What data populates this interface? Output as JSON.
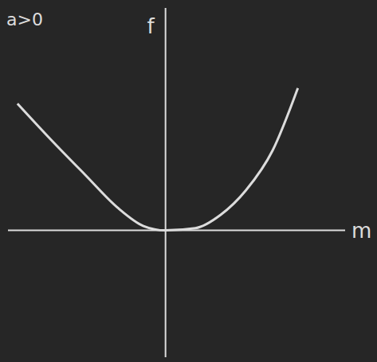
{
  "chart_data": {
    "type": "line",
    "title": "a>0",
    "x_label": "m",
    "y_label": "f",
    "x": [
      -0.94,
      -0.73,
      -0.51,
      -0.3,
      -0.14,
      0,
      0.19,
      0.35,
      0.51,
      0.68,
      0.84
    ],
    "values": [
      0.57,
      0.41,
      0.25,
      0.1,
      0.02,
      0,
      0.01,
      0.07,
      0.18,
      0.36,
      0.64
    ],
    "color": "#dcdcdc",
    "xlim": [
      -1,
      1.14
    ],
    "ylim": [
      -0.57,
      1
    ],
    "tick_labels": false,
    "grid": false
  }
}
